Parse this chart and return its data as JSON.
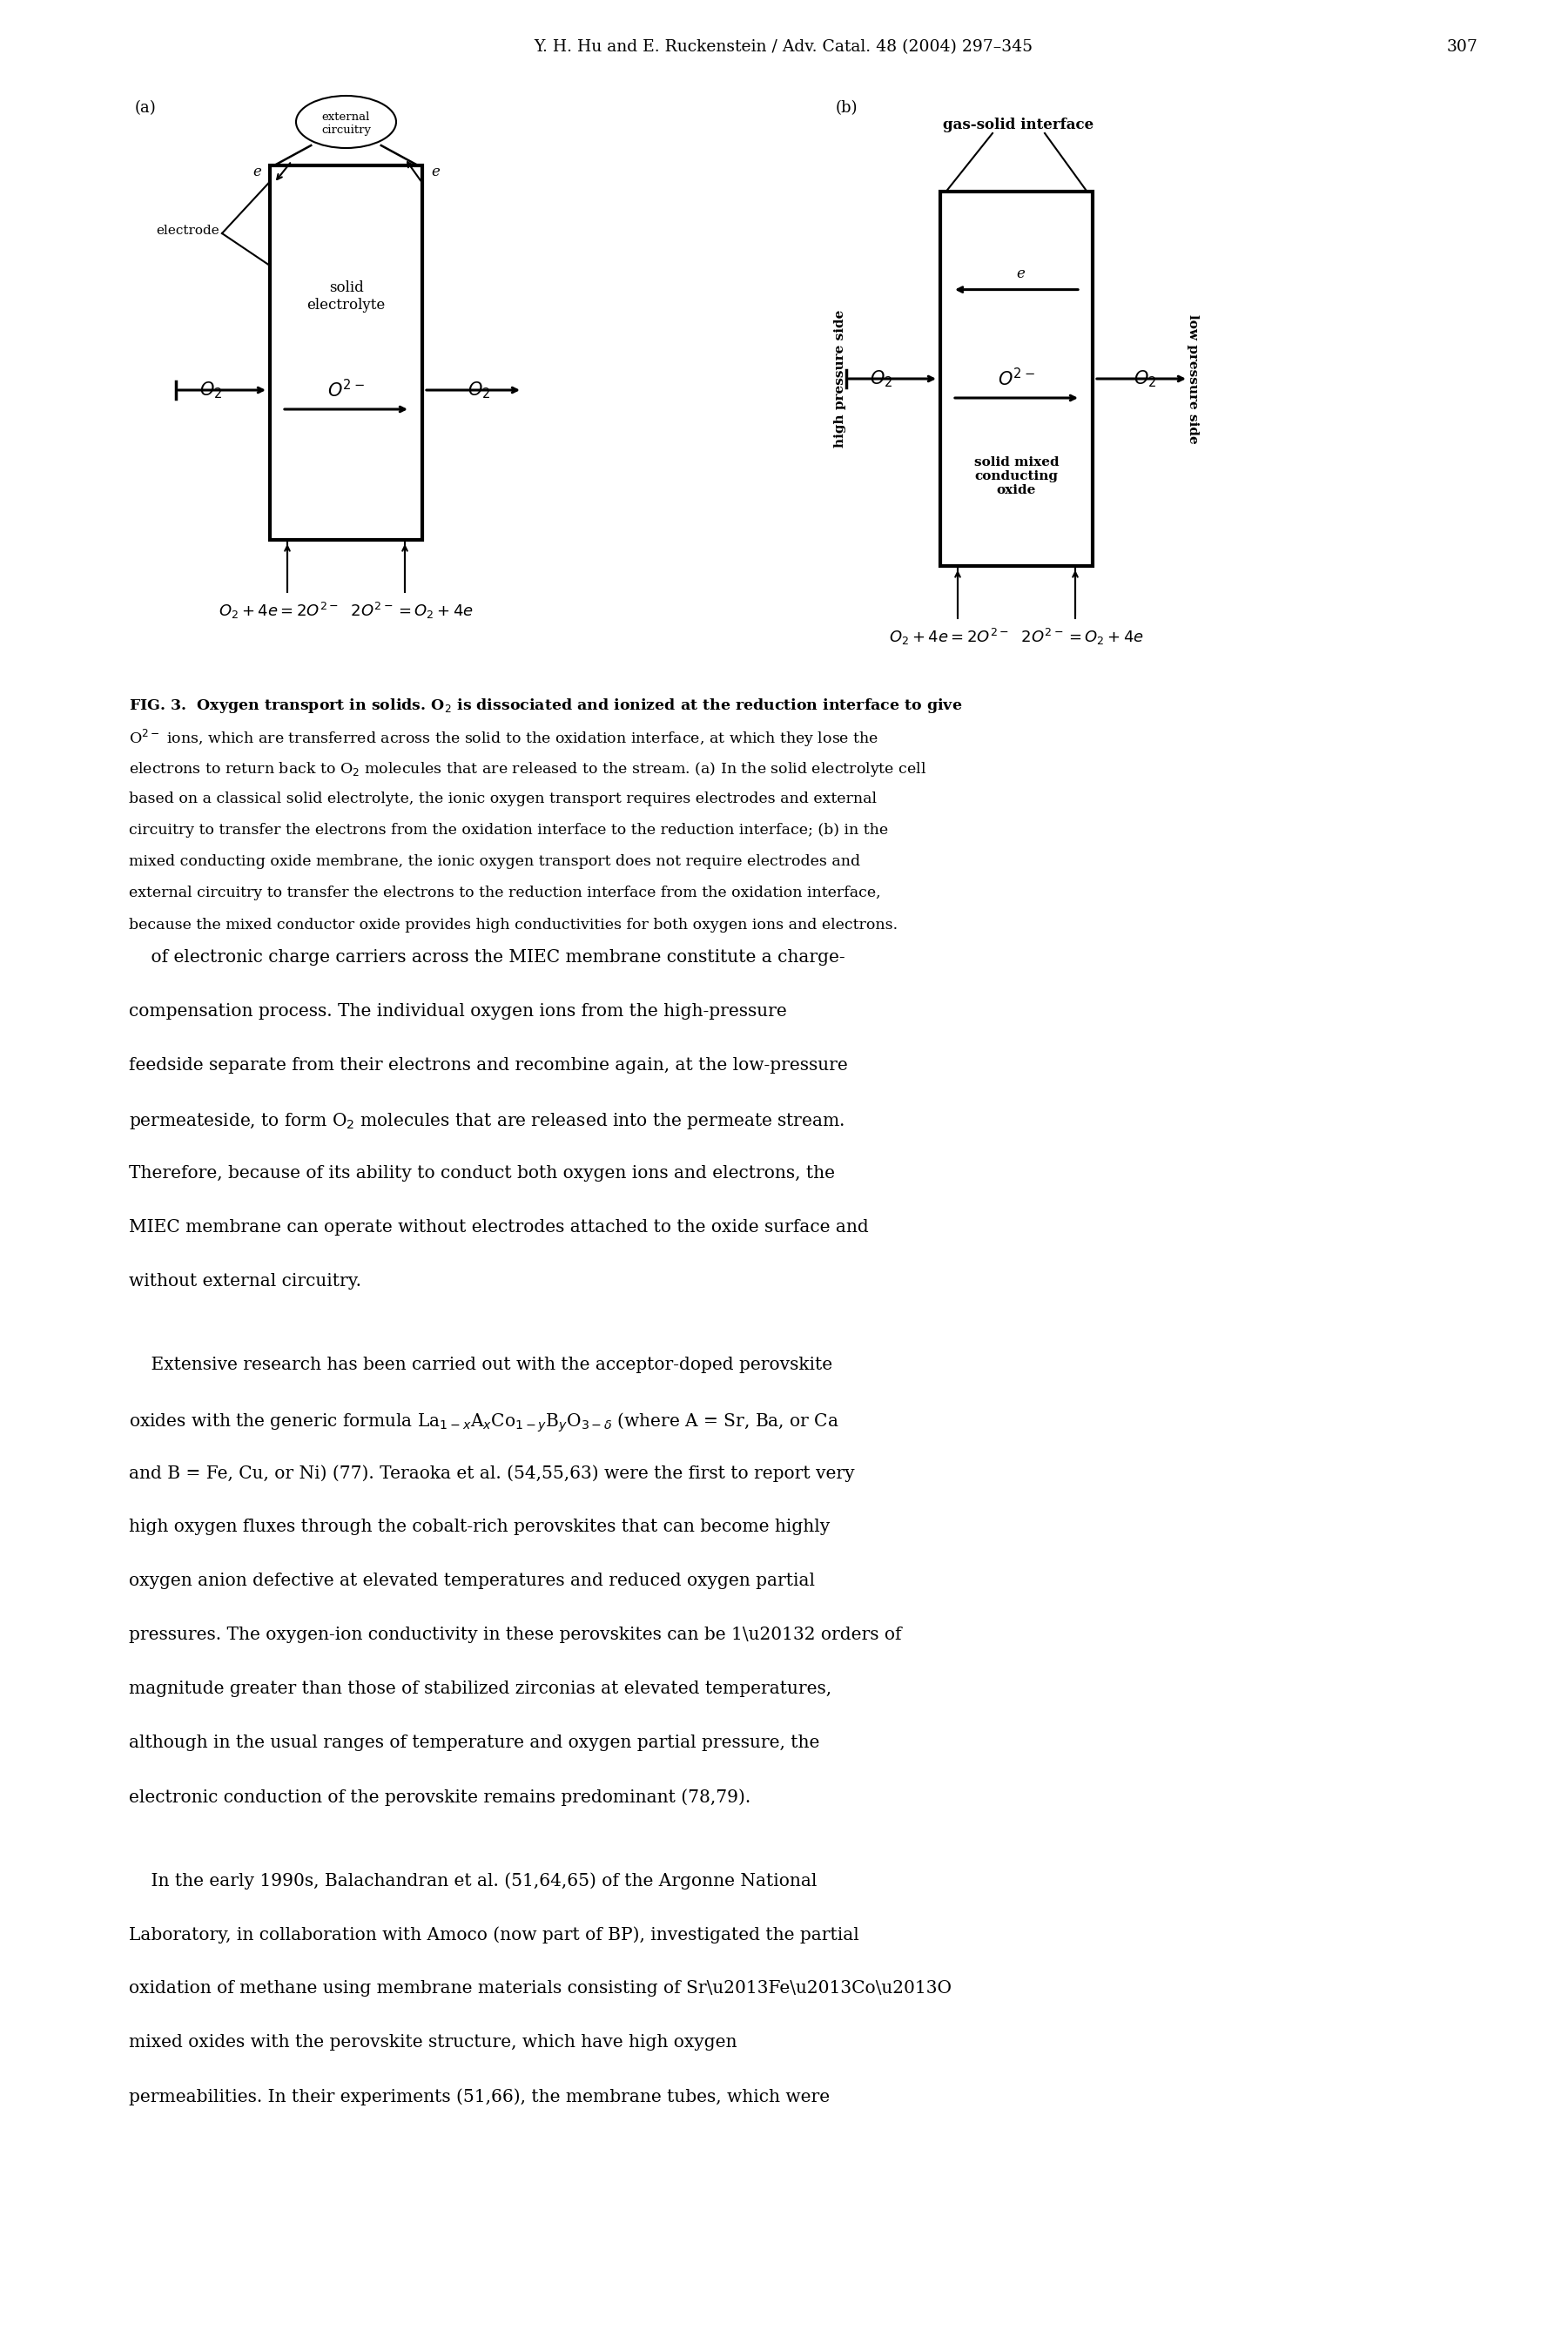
{
  "page_header": "Y. H. Hu and E. Ruckenstein / Adv. Catal. 48 (2004) 297–345",
  "page_number": "307",
  "background_color": "#ffffff",
  "fig_caption_bold": "FIG. 3.",
  "fig_caption_normal": "  Oxygen transport in solids. O₂ is dissociated and ionized at the reduction interface to give O²⁻ ions, which are transferred across the solid to the oxidation interface, at which they lose the electrons to return back to O₂ molecules that are released to the stream. (a) In the solid electrolyte cell based on a classical solid electrolyte, the ionic oxygen transport requires electrodes and external circuitry to transfer the electrons from the oxidation interface to the reduction interface; (b) in the mixed conducting oxide membrane, the ionic oxygen transport does not require electrodes and external circuitry to transfer the electrons to the reduction interface from the oxidation interface, because the mixed conductor oxide provides high conductivities for both oxygen ions and electrons.",
  "para1": "of electronic charge carriers across the MIEC membrane constitute a charge-compensation process. The individual oxygen ions from the high-pressure feedside separate from their electrons and recombine again, at the low-pressure permeateside, to form O₂ molecules that are released into the permeate stream. Therefore, because of its ability to conduct both oxygen ions and electrons, the MIEC membrane can operate without electrodes attached to the oxide surface and without external circuitry.",
  "para2": "Extensive research has been carried out with the acceptor-doped perovskite oxides with the generic formula La₁₋ₓAₓCo₁₋ᵧBᵧO₃₋δ (where A = Sr, Ba, or Ca and B = Fe, Cu, or Ni) (77). Teraoka et al. (54,55,63) were the first to report very high oxygen fluxes through the cobalt-rich perovskites that can become highly oxygen anion defective at elevated temperatures and reduced oxygen partial pressures. The oxygen-ion conductivity in these perovskites can be 1–2 orders of magnitude greater than those of stabilized zirconias at elevated temperatures, although in the usual ranges of temperature and oxygen partial pressure, the electronic conduction of the perovskite remains predominant (78,79).",
  "para3": "In the early 1990s, Balachandran et al. (51,64,65) of the Argonne National Laboratory, in collaboration with Amoco (now part of BP), investigated the partial oxidation of methane using membrane materials consisting of Sr–Fe–Co–O mixed oxides with the perovskite structure, which have high oxygen permeabilities. In their experiments (51,66), the membrane tubes, which were"
}
